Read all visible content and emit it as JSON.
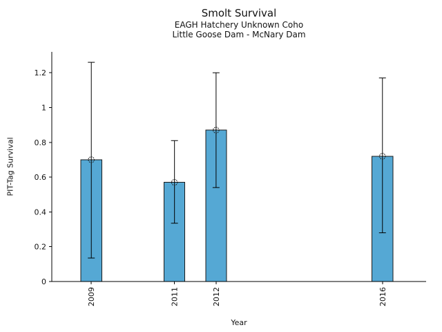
{
  "chart_data": {
    "type": "bar",
    "title": "Smolt Survival",
    "subtitle_line1": "EAGH Hatchery Unknown Coho",
    "subtitle_line2": "Little Goose Dam - McNary Dam",
    "xlabel": "Year",
    "ylabel": "PIT-Tag Survival",
    "categories": [
      "2009",
      "2011",
      "2012",
      "2016"
    ],
    "x_numeric": [
      2009,
      2011,
      2012,
      2016
    ],
    "values": [
      0.7,
      0.57,
      0.87,
      0.72
    ],
    "error_low": [
      0.135,
      0.335,
      0.54,
      0.28
    ],
    "error_high": [
      1.26,
      0.81,
      1.2,
      1.17
    ],
    "xlim": [
      2008.05,
      2017.05
    ],
    "ylim": [
      0,
      1.32
    ],
    "yticks": [
      0,
      0.2,
      0.4,
      0.6,
      0.8,
      1,
      1.2
    ],
    "ytick_labels": [
      "0",
      "0.2",
      "0.4",
      "0.6",
      "0.8",
      "1",
      "1.2"
    ],
    "bar_width_years": 0.5,
    "bar_color": "#55A8D4",
    "bar_edge_color": "#1a1a1a",
    "error_color": "#000000",
    "axis_color": "#000000",
    "marker": "open-circle",
    "grid": false,
    "legend": null,
    "background": "#ffffff"
  }
}
